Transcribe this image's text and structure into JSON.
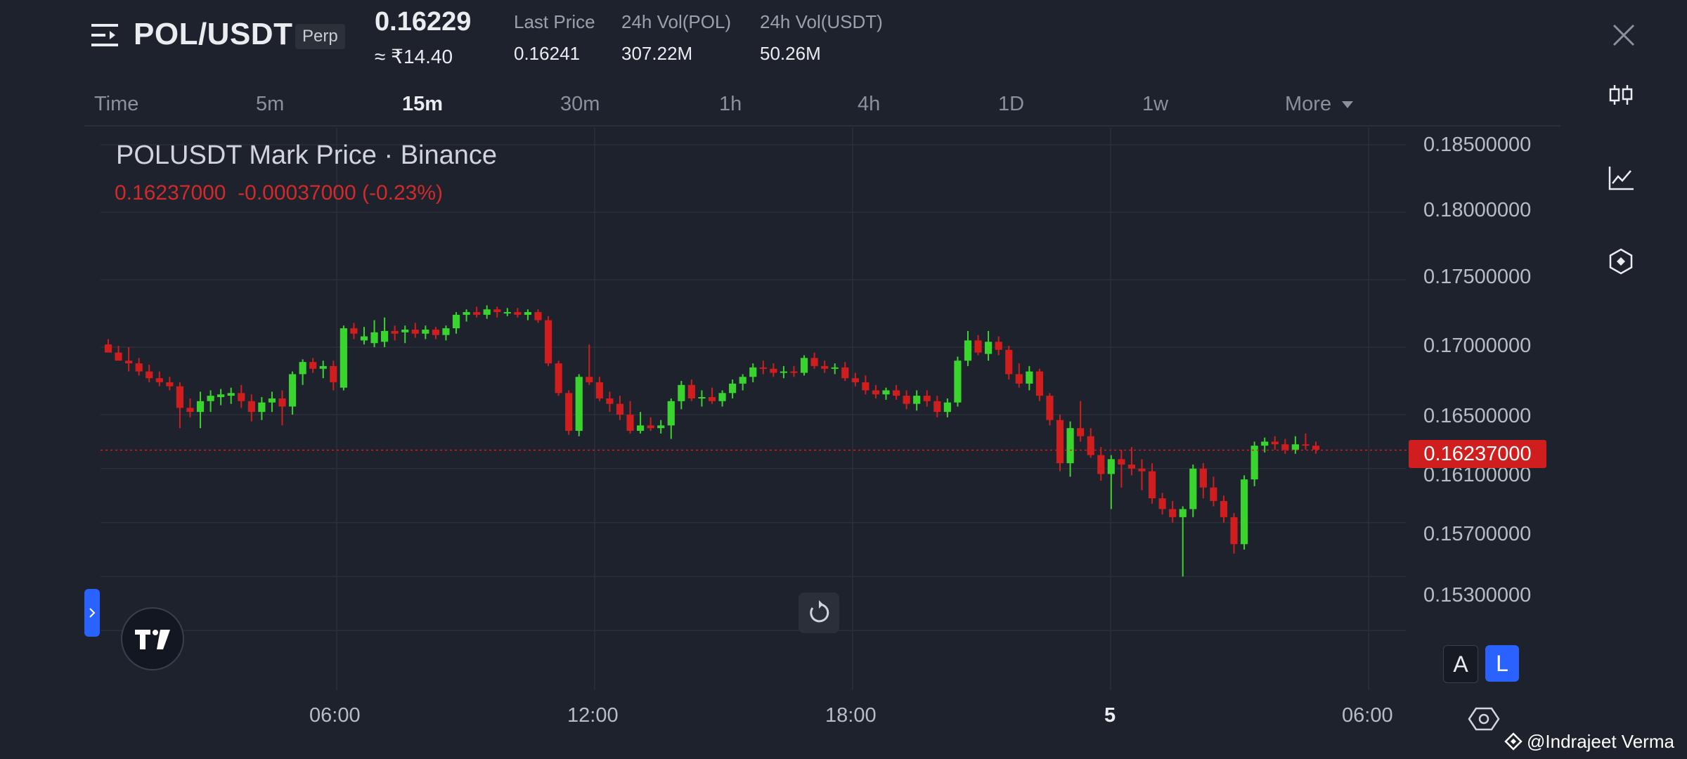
{
  "header": {
    "pair": "POL/USDT",
    "badge": "Perp",
    "price": "0.16229",
    "price_inr": "≈ ₹14.40",
    "stats": [
      {
        "label": "Last Price",
        "value": "0.16241"
      },
      {
        "label": "24h Vol(POL)",
        "value": "307.22M"
      },
      {
        "label": "24h Vol(USDT)",
        "value": "50.26M"
      }
    ]
  },
  "timeframes": [
    "Time",
    "5m",
    "15m",
    "30m",
    "1h",
    "4h",
    "1D",
    "1w",
    "More"
  ],
  "active_timeframe": "15m",
  "chart": {
    "title": "POLUSDT Mark Price · Binance",
    "last": "0.16237000",
    "change": "-0.00037000 (-0.23%)",
    "price_tag": "0.16237000",
    "y_labels": [
      "0.18500000",
      "0.18000000",
      "0.17500000",
      "0.17000000",
      "0.16500000",
      "0.16100000",
      "0.15700000",
      "0.15300000"
    ],
    "x_labels": [
      "06:00",
      "12:00",
      "18:00",
      "5",
      "06:00"
    ],
    "scale_buttons": [
      "A",
      "L"
    ]
  },
  "chart_data": {
    "type": "candlestick",
    "title": "POLUSDT Mark Price · Binance",
    "ylim": [
      0.15,
      0.187
    ],
    "up_color": "#39d42e",
    "down_color": "#d01d1d",
    "last_price": 0.16237,
    "ohlc_note": "",
    "candles": [
      [
        0.1702,
        0.1706,
        0.1698,
        0.1696
      ],
      [
        0.1696,
        0.1701,
        0.1693,
        0.169
      ],
      [
        0.169,
        0.17,
        0.1682,
        0.1688
      ],
      [
        0.1688,
        0.1692,
        0.1679,
        0.1682
      ],
      [
        0.1682,
        0.1687,
        0.1674,
        0.1677
      ],
      [
        0.1677,
        0.1682,
        0.1671,
        0.1674
      ],
      [
        0.1674,
        0.1678,
        0.1668,
        0.1671
      ],
      [
        0.1671,
        0.1674,
        0.164,
        0.1655
      ],
      [
        0.1655,
        0.1662,
        0.1648,
        0.1652
      ],
      [
        0.1652,
        0.1667,
        0.164,
        0.166
      ],
      [
        0.166,
        0.1668,
        0.1652,
        0.1664
      ],
      [
        0.1663,
        0.1669,
        0.1657,
        0.1665
      ],
      [
        0.1664,
        0.167,
        0.1658,
        0.1666
      ],
      [
        0.1666,
        0.1672,
        0.1655,
        0.166
      ],
      [
        0.166,
        0.1665,
        0.1645,
        0.1652
      ],
      [
        0.1652,
        0.1663,
        0.1646,
        0.1659
      ],
      [
        0.1659,
        0.1667,
        0.1652,
        0.1662
      ],
      [
        0.1662,
        0.1668,
        0.1642,
        0.1656
      ],
      [
        0.1656,
        0.1682,
        0.165,
        0.168
      ],
      [
        0.168,
        0.1691,
        0.1672,
        0.1689
      ],
      [
        0.1689,
        0.1692,
        0.1681,
        0.1684
      ],
      [
        0.1684,
        0.169,
        0.1677,
        0.1686
      ],
      [
        0.1686,
        0.169,
        0.1668,
        0.1674
      ],
      [
        0.167,
        0.1716,
        0.1668,
        0.1714
      ],
      [
        0.1714,
        0.1718,
        0.1706,
        0.171
      ],
      [
        0.1705,
        0.1715,
        0.1702,
        0.1708
      ],
      [
        0.1703,
        0.172,
        0.17,
        0.1711
      ],
      [
        0.1704,
        0.1722,
        0.17,
        0.1712
      ],
      [
        0.1712,
        0.1716,
        0.1705,
        0.171
      ],
      [
        0.1711,
        0.1716,
        0.1703,
        0.1713
      ],
      [
        0.1713,
        0.1718,
        0.1707,
        0.171
      ],
      [
        0.171,
        0.1716,
        0.1706,
        0.1713
      ],
      [
        0.1713,
        0.1715,
        0.1706,
        0.1709
      ],
      [
        0.1709,
        0.1716,
        0.1705,
        0.1714
      ],
      [
        0.1714,
        0.1726,
        0.171,
        0.1724
      ],
      [
        0.1724,
        0.1728,
        0.1719,
        0.1726
      ],
      [
        0.1726,
        0.173,
        0.1722,
        0.1724
      ],
      [
        0.1724,
        0.1731,
        0.1721,
        0.1728
      ],
      [
        0.1728,
        0.173,
        0.1722,
        0.1726
      ],
      [
        0.1726,
        0.1729,
        0.1723,
        0.1726
      ],
      [
        0.1726,
        0.1729,
        0.1722,
        0.1724
      ],
      [
        0.1724,
        0.1728,
        0.172,
        0.1726
      ],
      [
        0.1726,
        0.1728,
        0.1718,
        0.172
      ],
      [
        0.172,
        0.1723,
        0.1686,
        0.1688
      ],
      [
        0.1688,
        0.169,
        0.1664,
        0.1666
      ],
      [
        0.1666,
        0.1668,
        0.1635,
        0.1638
      ],
      [
        0.1638,
        0.168,
        0.1634,
        0.1678
      ],
      [
        0.1678,
        0.1702,
        0.1672,
        0.1674
      ],
      [
        0.1674,
        0.1678,
        0.166,
        0.1662
      ],
      [
        0.1662,
        0.1667,
        0.1652,
        0.1658
      ],
      [
        0.1658,
        0.1664,
        0.1646,
        0.165
      ],
      [
        0.165,
        0.166,
        0.1636,
        0.1638
      ],
      [
        0.1638,
        0.1652,
        0.1636,
        0.1642
      ],
      [
        0.1642,
        0.1648,
        0.1638,
        0.164
      ],
      [
        0.164,
        0.1646,
        0.1636,
        0.1642
      ],
      [
        0.1642,
        0.1662,
        0.1632,
        0.166
      ],
      [
        0.166,
        0.1675,
        0.1654,
        0.1672
      ],
      [
        0.1672,
        0.1676,
        0.166,
        0.1662
      ],
      [
        0.1662,
        0.1668,
        0.1656,
        0.1663
      ],
      [
        0.1663,
        0.167,
        0.1658,
        0.166
      ],
      [
        0.166,
        0.1668,
        0.1656,
        0.1666
      ],
      [
        0.1666,
        0.1676,
        0.1662,
        0.1673
      ],
      [
        0.1673,
        0.168,
        0.1668,
        0.1678
      ],
      [
        0.1678,
        0.1688,
        0.1674,
        0.1685
      ],
      [
        0.1685,
        0.169,
        0.168,
        0.1684
      ],
      [
        0.1684,
        0.1688,
        0.1678,
        0.1681
      ],
      [
        0.1681,
        0.1686,
        0.1677,
        0.1682
      ],
      [
        0.1682,
        0.1686,
        0.1678,
        0.1681
      ],
      [
        0.1681,
        0.1694,
        0.1679,
        0.1692
      ],
      [
        0.1692,
        0.1696,
        0.1684,
        0.1686
      ],
      [
        0.1686,
        0.169,
        0.1681,
        0.1684
      ],
      [
        0.1684,
        0.1688,
        0.168,
        0.1685
      ],
      [
        0.1685,
        0.1689,
        0.1675,
        0.1677
      ],
      [
        0.1677,
        0.1681,
        0.1671,
        0.1674
      ],
      [
        0.1674,
        0.1679,
        0.1665,
        0.1668
      ],
      [
        0.1668,
        0.1672,
        0.1662,
        0.1665
      ],
      [
        0.1665,
        0.167,
        0.1661,
        0.1668
      ],
      [
        0.1668,
        0.1672,
        0.1661,
        0.1664
      ],
      [
        0.1664,
        0.1668,
        0.1654,
        0.1658
      ],
      [
        0.1658,
        0.1668,
        0.1653,
        0.1664
      ],
      [
        0.1664,
        0.1668,
        0.1656,
        0.166
      ],
      [
        0.166,
        0.1664,
        0.1648,
        0.1652
      ],
      [
        0.1652,
        0.1662,
        0.1648,
        0.1659
      ],
      [
        0.1659,
        0.1693,
        0.1656,
        0.169
      ],
      [
        0.169,
        0.1712,
        0.1686,
        0.1705
      ],
      [
        0.1705,
        0.1709,
        0.1694,
        0.1696
      ],
      [
        0.1695,
        0.1712,
        0.169,
        0.1704
      ],
      [
        0.1704,
        0.1708,
        0.1694,
        0.1698
      ],
      [
        0.1698,
        0.1701,
        0.1676,
        0.168
      ],
      [
        0.168,
        0.1688,
        0.167,
        0.1673
      ],
      [
        0.1673,
        0.1686,
        0.1668,
        0.1682
      ],
      [
        0.1682,
        0.1684,
        0.166,
        0.1664
      ],
      [
        0.1664,
        0.1666,
        0.1642,
        0.1646
      ],
      [
        0.1646,
        0.165,
        0.1608,
        0.1614
      ],
      [
        0.1614,
        0.1645,
        0.1604,
        0.164
      ],
      [
        0.164,
        0.166,
        0.163,
        0.1634
      ],
      [
        0.1634,
        0.164,
        0.1618,
        0.162
      ],
      [
        0.162,
        0.1626,
        0.1601,
        0.1606
      ],
      [
        0.1606,
        0.162,
        0.158,
        0.1617
      ],
      [
        0.1617,
        0.1624,
        0.1596,
        0.1613
      ],
      [
        0.1613,
        0.1626,
        0.1605,
        0.161
      ],
      [
        0.161,
        0.1617,
        0.1594,
        0.1608
      ],
      [
        0.1608,
        0.1614,
        0.1584,
        0.1588
      ],
      [
        0.1588,
        0.1592,
        0.1576,
        0.158
      ],
      [
        0.158,
        0.1586,
        0.157,
        0.1574
      ],
      [
        0.1574,
        0.1582,
        0.153,
        0.158
      ],
      [
        0.158,
        0.1613,
        0.1574,
        0.161
      ],
      [
        0.161,
        0.1614,
        0.1588,
        0.1596
      ],
      [
        0.1596,
        0.1604,
        0.1582,
        0.1586
      ],
      [
        0.1586,
        0.159,
        0.157,
        0.1574
      ],
      [
        0.1574,
        0.1577,
        0.1547,
        0.1554
      ],
      [
        0.1554,
        0.1605,
        0.155,
        0.1602
      ],
      [
        0.1602,
        0.163,
        0.1597,
        0.1627
      ],
      [
        0.1627,
        0.1633,
        0.1622,
        0.163
      ],
      [
        0.163,
        0.1634,
        0.1624,
        0.1628
      ],
      [
        0.1628,
        0.1632,
        0.1621,
        0.1624
      ],
      [
        0.1624,
        0.1634,
        0.1621,
        0.1628
      ],
      [
        0.1628,
        0.1636,
        0.1624,
        0.1627
      ],
      [
        0.1627,
        0.163,
        0.1621,
        0.1624
      ]
    ]
  },
  "watermark": "@Indrajeet  Verma",
  "colors": {
    "background": "#1e222d",
    "accent": "#2962ff",
    "up": "#39d42e",
    "down": "#d01d1d"
  },
  "icons": [
    "menu-icon",
    "close-icon",
    "candlestick-icon",
    "line-chart-icon",
    "indicator-icon",
    "reset-icon",
    "settings-icon",
    "tradingview-logo"
  ]
}
